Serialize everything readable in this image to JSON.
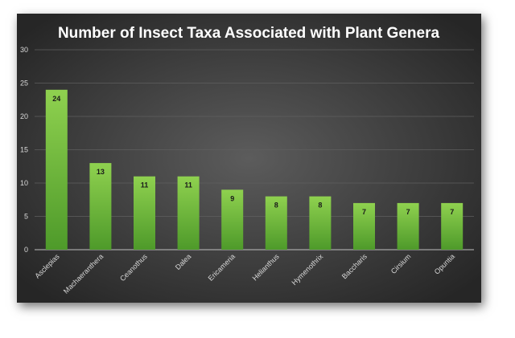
{
  "chart_data": {
    "type": "bar",
    "title": "Number of Insect Taxa Associated with Plant Genera",
    "xlabel": "",
    "ylabel": "",
    "ylim": [
      0,
      30
    ],
    "yticks": [
      0,
      5,
      10,
      15,
      20,
      25,
      30
    ],
    "grid": true,
    "legend": "none",
    "categories": [
      "Asclepias",
      "Machaeranthera",
      "Ceanothus",
      "Dalea",
      "Ericameria",
      "Helianthus",
      "Hymenothrix",
      "Baccharis",
      "Cirsium",
      "Opuntia"
    ],
    "values": [
      24,
      13,
      11,
      11,
      9,
      8,
      8,
      7,
      7,
      7
    ],
    "colors": {
      "background_center": "#5c5c5c",
      "background_edge": "#262626",
      "bar_top": "#8fd14f",
      "bar_bottom": "#4e9a2a",
      "grid": "#5f5f5f",
      "axis": "#bfbfbf"
    }
  }
}
